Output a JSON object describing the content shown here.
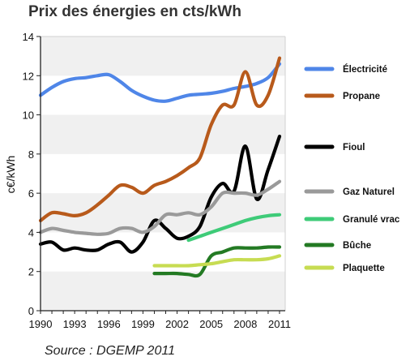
{
  "chart_data": {
    "type": "line",
    "title": "Prix des énergies en cts/kWh",
    "ylabel": "c€/kWh",
    "xlabel": "",
    "xlim": [
      1990,
      2011.5
    ],
    "ylim": [
      0,
      14
    ],
    "x_ticks": [
      "1990",
      "1993",
      "1996",
      "1999",
      "2002",
      "2005",
      "2008",
      "2011"
    ],
    "y_ticks": [
      "0",
      "2",
      "4",
      "6",
      "8",
      "10",
      "12",
      "14"
    ],
    "legend_position": "right",
    "source": "Source : DGEMP 2011",
    "series": [
      {
        "name": "Électricité",
        "color": "#4f86e8",
        "x": [
          1990,
          1991,
          1992,
          1993,
          1994,
          1995,
          1996,
          1997,
          1998,
          1999,
          2000,
          2001,
          2002,
          2003,
          2004,
          2005,
          2006,
          2007,
          2008,
          2009,
          2010,
          2011
        ],
        "y": [
          11.0,
          11.4,
          11.7,
          11.85,
          11.9,
          12.0,
          12.05,
          11.7,
          11.25,
          10.95,
          10.75,
          10.7,
          10.85,
          11.0,
          11.05,
          11.1,
          11.2,
          11.35,
          11.45,
          11.6,
          11.9,
          12.6
        ]
      },
      {
        "name": "Propane",
        "color": "#b85a1b",
        "x": [
          1990,
          1991,
          1992,
          1993,
          1994,
          1995,
          1996,
          1997,
          1998,
          1999,
          2000,
          2001,
          2002,
          2003,
          2004,
          2005,
          2006,
          2007,
          2008,
          2009,
          2010,
          2011
        ],
        "y": [
          4.6,
          5.0,
          4.95,
          4.85,
          5.0,
          5.4,
          5.9,
          6.4,
          6.3,
          6.0,
          6.4,
          6.6,
          6.9,
          7.3,
          7.8,
          9.5,
          10.5,
          10.5,
          12.2,
          10.5,
          11.0,
          12.9
        ]
      },
      {
        "name": "Fioul",
        "color": "#000000",
        "x": [
          1990,
          1991,
          1992,
          1993,
          1994,
          1995,
          1996,
          1997,
          1998,
          1999,
          2000,
          2001,
          2002,
          2003,
          2004,
          2005,
          2006,
          2007,
          2008,
          2009,
          2010,
          2011
        ],
        "y": [
          3.4,
          3.5,
          3.1,
          3.2,
          3.1,
          3.1,
          3.4,
          3.5,
          3.0,
          3.5,
          4.6,
          4.2,
          3.7,
          3.8,
          4.3,
          5.8,
          6.5,
          6.1,
          8.4,
          5.7,
          7.2,
          8.9
        ]
      },
      {
        "name": "Gaz Naturel",
        "color": "#9a9a9a",
        "x": [
          1990,
          1991,
          1992,
          1993,
          1994,
          1995,
          1996,
          1997,
          1998,
          1999,
          2000,
          2001,
          2002,
          2003,
          2004,
          2005,
          2006,
          2007,
          2008,
          2009,
          2010,
          2011
        ],
        "y": [
          4.0,
          4.2,
          4.1,
          4.0,
          3.95,
          3.9,
          3.95,
          4.2,
          4.2,
          4.0,
          4.3,
          4.9,
          4.9,
          5.0,
          4.9,
          5.3,
          6.0,
          6.0,
          6.0,
          5.9,
          6.2,
          6.6
        ]
      },
      {
        "name": "Granulé vrac",
        "color": "#3ecb78",
        "x": [
          2003,
          2004,
          2005,
          2006,
          2007,
          2008,
          2009,
          2010,
          2011
        ],
        "y": [
          3.6,
          3.8,
          4.0,
          4.2,
          4.4,
          4.6,
          4.75,
          4.85,
          4.9
        ]
      },
      {
        "name": "Bûche",
        "color": "#237a23",
        "x": [
          2000,
          2001,
          2002,
          2003,
          2004,
          2005,
          2006,
          2007,
          2008,
          2009,
          2010,
          2011
        ],
        "y": [
          1.9,
          1.9,
          1.9,
          1.85,
          1.85,
          2.8,
          3.0,
          3.2,
          3.2,
          3.2,
          3.25,
          3.25
        ]
      },
      {
        "name": "Plaquette",
        "color": "#c7dc52",
        "x": [
          2000,
          2001,
          2002,
          2003,
          2004,
          2005,
          2006,
          2007,
          2008,
          2009,
          2010,
          2011
        ],
        "y": [
          2.3,
          2.3,
          2.3,
          2.3,
          2.35,
          2.4,
          2.5,
          2.6,
          2.6,
          2.6,
          2.65,
          2.8
        ]
      }
    ]
  }
}
